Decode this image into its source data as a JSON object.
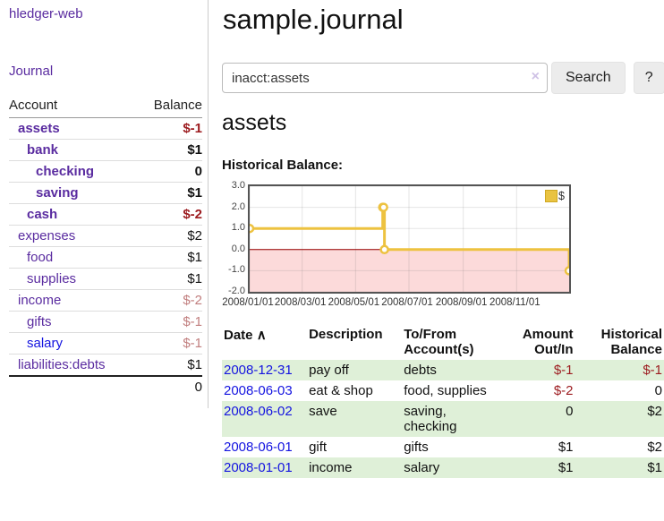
{
  "app": {
    "title": "hledger-web",
    "nav_journal": "Journal"
  },
  "sidebar": {
    "headers": {
      "account": "Account",
      "balance": "Balance"
    },
    "accounts": [
      {
        "label": "assets",
        "level": 1,
        "bold": true,
        "link": "purple",
        "balance": "$-1",
        "muted": false
      },
      {
        "label": "bank",
        "level": 2,
        "bold": true,
        "link": "purple",
        "balance": "$1",
        "muted": false
      },
      {
        "label": "checking",
        "level": 3,
        "bold": true,
        "link": "purple",
        "balance": "0",
        "muted": false
      },
      {
        "label": "saving",
        "level": 3,
        "bold": true,
        "link": "purple",
        "balance": "$1",
        "muted": false
      },
      {
        "label": "cash",
        "level": 2,
        "bold": true,
        "link": "purple",
        "balance": "$-2",
        "muted": false
      },
      {
        "label": "expenses",
        "level": 1,
        "bold": false,
        "link": "purple",
        "balance": "$2",
        "muted": false
      },
      {
        "label": "food",
        "level": 2,
        "bold": false,
        "link": "purple",
        "balance": "$1",
        "muted": false
      },
      {
        "label": "supplies",
        "level": 2,
        "bold": false,
        "link": "purple",
        "balance": "$1",
        "muted": false
      },
      {
        "label": "income",
        "level": 1,
        "bold": false,
        "link": "purple",
        "balance": "$-2",
        "muted": true
      },
      {
        "label": "gifts",
        "level": 2,
        "bold": false,
        "link": "purple",
        "balance": "$-1",
        "muted": true
      },
      {
        "label": "salary",
        "level": 2,
        "bold": false,
        "link": "blue",
        "balance": "$-1",
        "muted": true
      },
      {
        "label": "liabilities:debts",
        "level": 1,
        "bold": false,
        "link": "purple",
        "balance": "$1",
        "muted": false
      }
    ],
    "total": "0"
  },
  "main": {
    "title": "sample.journal",
    "search": {
      "value": "inacct:assets",
      "clear_icon": "×",
      "button_label": "Search",
      "help_label": "?"
    },
    "account_heading": "assets",
    "chart_label": "Historical Balance:"
  },
  "chart_data": {
    "type": "line",
    "step": true,
    "title": "Historical Balance",
    "series": [
      {
        "name": "$",
        "color": "#edc240",
        "points": [
          [
            "2008-01-01",
            1
          ],
          [
            "2008-06-01",
            2
          ],
          [
            "2008-06-02",
            2
          ],
          [
            "2008-06-03",
            0
          ],
          [
            "2008-12-31",
            -1
          ]
        ]
      }
    ],
    "xlim": [
      "2008-01-01",
      "2008-12-31"
    ],
    "ylim": [
      -2,
      3
    ],
    "yticks": [
      {
        "v": 3,
        "label": "3.0"
      },
      {
        "v": 2,
        "label": "2.0"
      },
      {
        "v": 1,
        "label": "1.0"
      },
      {
        "v": 0,
        "label": "0.0"
      },
      {
        "v": -1,
        "label": "-1.0"
      },
      {
        "v": -2,
        "label": "-2.0"
      }
    ],
    "xticks": [
      {
        "date": "2008-01-01",
        "label": "2008/01/01"
      },
      {
        "date": "2008-03-01",
        "label": "2008/03/01"
      },
      {
        "date": "2008-05-01",
        "label": "2008/05/01"
      },
      {
        "date": "2008-07-01",
        "label": "2008/07/01"
      },
      {
        "date": "2008-09-01",
        "label": "2008/09/01"
      },
      {
        "date": "2008-11-01",
        "label": "2008/11/01"
      }
    ],
    "grid": true,
    "legend_position": "top-right",
    "negative_region_color": "#fcdada",
    "zero_line_color": "#990000",
    "accent_color": "#edc240"
  },
  "register": {
    "headers": {
      "date": "Date",
      "sort_icon": "∧",
      "description": "Description",
      "accounts": "To/From Account(s)",
      "amount": "Amount Out/In",
      "balance": "Historical Balance"
    },
    "rows": [
      {
        "date": "2008-12-31",
        "description": "pay off",
        "accounts": "debts",
        "amount": "$-1",
        "balance": "$-1"
      },
      {
        "date": "2008-06-03",
        "description": "eat & shop",
        "accounts": "food, supplies",
        "amount": "$-2",
        "balance": "0"
      },
      {
        "date": "2008-06-02",
        "description": "save",
        "accounts": "saving, checking",
        "amount": "0",
        "balance": "$2"
      },
      {
        "date": "2008-06-01",
        "description": "gift",
        "accounts": "gifts",
        "amount": "$1",
        "balance": "$2"
      },
      {
        "date": "2008-01-01",
        "description": "income",
        "accounts": "salary",
        "amount": "$1",
        "balance": "$1"
      }
    ]
  }
}
